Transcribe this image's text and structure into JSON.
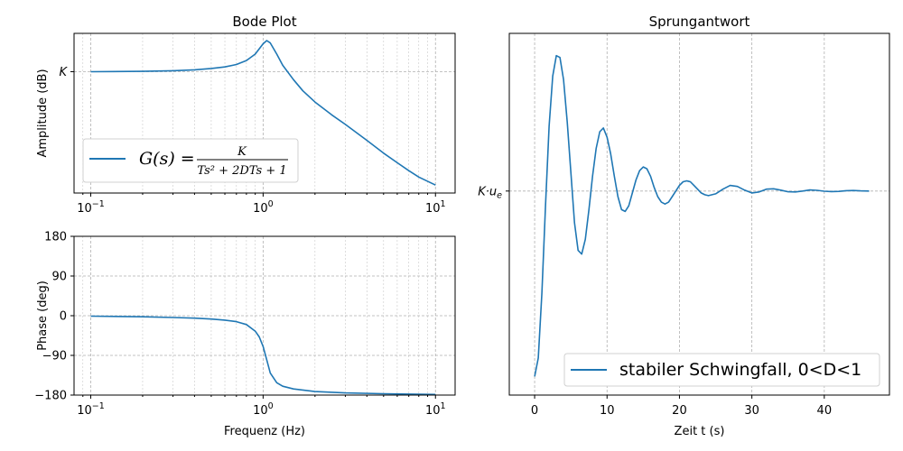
{
  "colors": {
    "series": "#1f77b4"
  },
  "chart_data": [
    {
      "id": "bode-amplitude",
      "type": "line",
      "title": "Bode Plot",
      "xlabel": "",
      "ylabel": "Amplitude (dB)",
      "xscale": "log",
      "xlim": [
        0.08,
        13
      ],
      "ylim": [
        0.0,
        1.0
      ],
      "x_ticks": [
        {
          "value": 0.1,
          "base": "10",
          "exp": "−1"
        },
        {
          "value": 1,
          "base": "10",
          "exp": "0"
        },
        {
          "value": 10,
          "base": "10",
          "exp": "1"
        }
      ],
      "y_ticks": [
        {
          "value": 0.76,
          "label": "K"
        }
      ],
      "grid": true,
      "legend_position": "lower-left",
      "legend_label": "G(s) = K / (Ts² + 2DTs + 1)",
      "legend_math": {
        "lhs": "G(s) =",
        "numerator": "K",
        "denominator": "Ts² + 2DTs + 1"
      },
      "series": [
        {
          "x": [
            0.1,
            0.2,
            0.3,
            0.4,
            0.5,
            0.6,
            0.7,
            0.8,
            0.9,
            1.0,
            1.05,
            1.1,
            1.2,
            1.3,
            1.5,
            1.7,
            2.0,
            2.5,
            3.0,
            4.0,
            5.0,
            6.0,
            7.0,
            8.0,
            10.0
          ],
          "y": [
            0.76,
            0.762,
            0.766,
            0.772,
            0.78,
            0.79,
            0.805,
            0.83,
            0.87,
            0.935,
            0.955,
            0.94,
            0.87,
            0.8,
            0.71,
            0.64,
            0.57,
            0.49,
            0.43,
            0.33,
            0.25,
            0.19,
            0.14,
            0.1,
            0.05
          ]
        }
      ]
    },
    {
      "id": "bode-phase",
      "type": "line",
      "title": "",
      "xlabel": "Frequenz (Hz)",
      "ylabel": "Phase (deg)",
      "xscale": "log",
      "xlim": [
        0.08,
        13
      ],
      "ylim": [
        -180,
        180
      ],
      "x_ticks": [
        {
          "value": 0.1,
          "base": "10",
          "exp": "−1"
        },
        {
          "value": 1,
          "base": "10",
          "exp": "0"
        },
        {
          "value": 10,
          "base": "10",
          "exp": "1"
        }
      ],
      "y_ticks": [
        {
          "value": 180,
          "label": "180"
        },
        {
          "value": 90,
          "label": "90"
        },
        {
          "value": 0,
          "label": "0"
        },
        {
          "value": -90,
          "label": "−90"
        },
        {
          "value": -180,
          "label": "−180"
        }
      ],
      "grid": true,
      "series": [
        {
          "x": [
            0.1,
            0.2,
            0.3,
            0.4,
            0.5,
            0.6,
            0.7,
            0.8,
            0.9,
            0.95,
            1.0,
            1.05,
            1.1,
            1.2,
            1.3,
            1.5,
            2.0,
            3.0,
            5.0,
            10.0
          ],
          "y": [
            -1,
            -2.5,
            -4,
            -5.5,
            -7.5,
            -10,
            -13.5,
            -20,
            -35,
            -48,
            -70,
            -100,
            -130,
            -152,
            -160,
            -166,
            -172,
            -175,
            -177,
            -178.5
          ]
        }
      ]
    },
    {
      "id": "step-response",
      "type": "line",
      "title": "Sprungantwort",
      "xlabel": "Zeit t (s)",
      "ylabel": "",
      "xlim": [
        -3.5,
        49
      ],
      "ylim": [
        -0.1,
        1.85
      ],
      "x_ticks": [
        {
          "value": 0,
          "label": "0"
        },
        {
          "value": 10,
          "label": "10"
        },
        {
          "value": 20,
          "label": "20"
        },
        {
          "value": 30,
          "label": "30"
        },
        {
          "value": 40,
          "label": "40"
        }
      ],
      "y_ticks": [
        {
          "value": 1,
          "label": "K·u",
          "sub": "e"
        }
      ],
      "grid": true,
      "legend_position": "lower-right",
      "legend_label": "stabiler Schwingfall, 0<D<1",
      "series": [
        {
          "name": "stabiler Schwingfall, 0<D<1",
          "x": [
            0,
            0.5,
            1.0,
            1.5,
            2.0,
            2.5,
            3.0,
            3.5,
            4.0,
            4.5,
            5.0,
            5.5,
            6.0,
            6.5,
            7.0,
            7.5,
            8.0,
            8.5,
            9.0,
            9.5,
            10.0,
            10.5,
            11.0,
            11.5,
            12.0,
            12.5,
            13.0,
            13.5,
            14.0,
            14.5,
            15.0,
            15.5,
            16.0,
            16.5,
            17.0,
            17.5,
            18.0,
            18.5,
            19.0,
            19.5,
            20.0,
            20.5,
            21.0,
            21.5,
            22.0,
            22.5,
            23.0,
            23.5,
            24.0,
            25.0,
            26.0,
            27.0,
            28.0,
            29.0,
            30.0,
            31.0,
            32.0,
            33.0,
            34.0,
            35.0,
            36.0,
            37.0,
            38.0,
            39.0,
            40.0,
            41.0,
            42.0,
            43.0,
            44.0,
            45.0,
            46.2
          ],
          "y": [
            0.0,
            0.1,
            0.45,
            0.92,
            1.35,
            1.62,
            1.73,
            1.72,
            1.6,
            1.37,
            1.1,
            0.83,
            0.68,
            0.66,
            0.74,
            0.9,
            1.08,
            1.23,
            1.32,
            1.34,
            1.29,
            1.2,
            1.08,
            0.97,
            0.9,
            0.89,
            0.92,
            0.99,
            1.06,
            1.11,
            1.13,
            1.12,
            1.08,
            1.02,
            0.97,
            0.94,
            0.93,
            0.94,
            0.97,
            1.0,
            1.03,
            1.05,
            1.055,
            1.05,
            1.03,
            1.01,
            0.99,
            0.98,
            0.975,
            0.985,
            1.01,
            1.03,
            1.025,
            1.005,
            0.99,
            0.995,
            1.01,
            1.012,
            1.005,
            0.996,
            0.995,
            1.0,
            1.006,
            1.004,
            0.999,
            0.997,
            0.998,
            1.002,
            1.003,
            1.001,
            1.0
          ]
        }
      ]
    }
  ]
}
